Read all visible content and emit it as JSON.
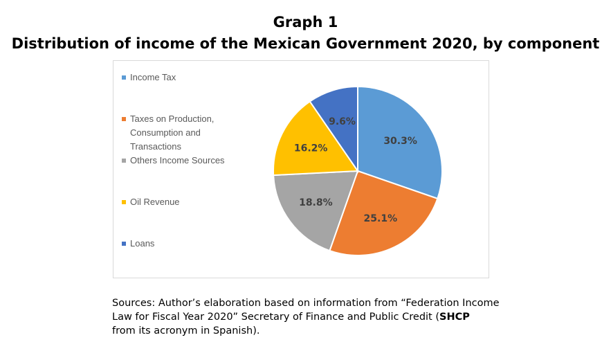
{
  "chart_data": {
    "type": "pie",
    "title": "Graph 1",
    "subtitle": "Distribution of income of the Mexican Government 2020, by component",
    "categories": [
      "Income Tax",
      "Taxes on Production, Consumption and Transactions",
      "Others Income Sources",
      "Oil Revenue",
      "Loans"
    ],
    "values": [
      30.3,
      25.1,
      18.8,
      16.2,
      9.6
    ],
    "data_labels": [
      "30.3%",
      "25.1%",
      "18.8%",
      "16.2%",
      "9.6%"
    ],
    "colors": [
      "#5B9BD5",
      "#ED7D31",
      "#A5A5A5",
      "#FFC000",
      "#4472C4"
    ],
    "legend_placement": "left",
    "start_angle": "top, clockwise"
  },
  "legend": {
    "items": [
      {
        "lines": [
          "Income Tax"
        ]
      },
      {
        "lines": [
          "Taxes on Production,",
          "Consumption and",
          "Transactions"
        ]
      },
      {
        "lines": [
          "Others Income Sources"
        ]
      },
      {
        "lines": [
          "Oil Revenue"
        ]
      },
      {
        "lines": [
          "Loans"
        ]
      }
    ]
  },
  "source": {
    "line1": "Sources: Author’s elaboration based on information from “Federation Income",
    "line2_pre": "Law for Fiscal Year 2020” Secretary of Finance and Public Credit (",
    "line2_bold": "SHCP",
    "line3": "from its acronym in Spanish)."
  }
}
